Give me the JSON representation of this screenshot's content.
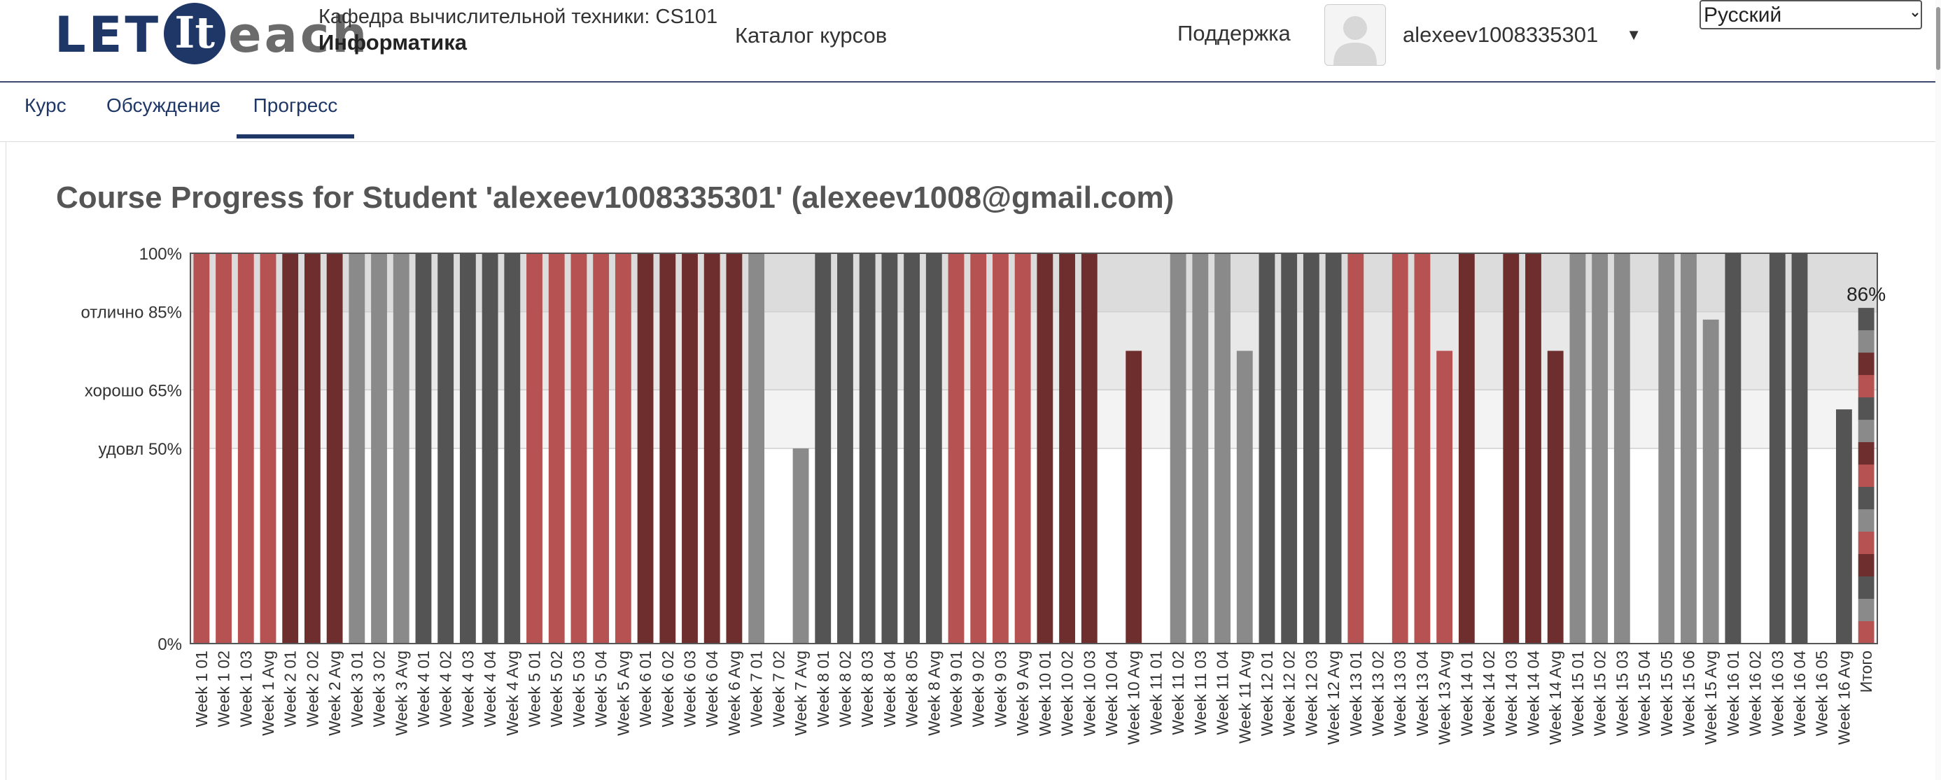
{
  "header": {
    "logo": {
      "part1": "LET",
      "part2": "It",
      "part3": "each"
    },
    "course_dept": "Кафедра вычислительной техники: CS101",
    "course_name": "Информатика",
    "catalog_link": "Каталог курсов",
    "support_link": "Поддержка",
    "username": "alexeev1008335301",
    "language": "Русский"
  },
  "tabs": [
    {
      "label": "Курс",
      "active": false
    },
    {
      "label": "Обсуждение",
      "active": false
    },
    {
      "label": "Прогресс",
      "active": true
    }
  ],
  "page_title": "Course Progress for Student 'alexeev1008335301' (alexeev1008@gmail.com)",
  "colors": {
    "red": "#b75252",
    "maroon": "#6e2e2e",
    "dark_gray": "#545454",
    "light_gray": "#8a8a8a",
    "nav_blue": "#1e3767"
  },
  "chart_data": {
    "type": "bar",
    "ylim": [
      0,
      100
    ],
    "y_ticks": [
      {
        "value": 100,
        "label": "100%"
      },
      {
        "value": 85,
        "label": "отлично 85%"
      },
      {
        "value": 65,
        "label": "хорошо 65%"
      },
      {
        "value": 50,
        "label": "удовл 50%"
      },
      {
        "value": 0,
        "label": "0%"
      }
    ],
    "bands": [
      {
        "from": 85,
        "to": 100,
        "color": "#dcdcdc"
      },
      {
        "from": 65,
        "to": 85,
        "color": "#e8e8e8"
      },
      {
        "from": 50,
        "to": 65,
        "color": "#f3f3f3"
      }
    ],
    "total_label": "86%",
    "categories": [
      "Week 1 01",
      "Week 1 02",
      "Week 1 03",
      "Week 1 Avg",
      "Week 2 01",
      "Week 2 02",
      "Week 2 Avg",
      "Week 3 01",
      "Week 3 02",
      "Week 3 Avg",
      "Week 4 01",
      "Week 4 02",
      "Week 4 03",
      "Week 4 04",
      "Week 4 Avg",
      "Week 5 01",
      "Week 5 02",
      "Week 5 03",
      "Week 5 04",
      "Week 5 Avg",
      "Week 6 01",
      "Week 6 02",
      "Week 6 03",
      "Week 6 04",
      "Week 6 Avg",
      "Week 7 01",
      "Week 7 02",
      "Week 7 Avg",
      "Week 8 01",
      "Week 8 02",
      "Week 8 03",
      "Week 8 04",
      "Week 8 05",
      "Week 8 Avg",
      "Week 9 01",
      "Week 9 02",
      "Week 9 03",
      "Week 9 Avg",
      "Week 10 01",
      "Week 10 02",
      "Week 10 03",
      "Week 10 04",
      "Week 10 Avg",
      "Week 11 01",
      "Week 11 02",
      "Week 11 03",
      "Week 11 04",
      "Week 11 Avg",
      "Week 12 01",
      "Week 12 02",
      "Week 12 03",
      "Week 12 Avg",
      "Week 13 01",
      "Week 13 02",
      "Week 13 03",
      "Week 13 04",
      "Week 13 Avg",
      "Week 14 01",
      "Week 14 02",
      "Week 14 03",
      "Week 14 04",
      "Week 14 Avg",
      "Week 15 01",
      "Week 15 02",
      "Week 15 03",
      "Week 15 04",
      "Week 15 05",
      "Week 15 06",
      "Week 15 Avg",
      "Week 16 01",
      "Week 16 02",
      "Week 16 03",
      "Week 16 04",
      "Week 16 05",
      "Week 16 Avg",
      "Итого"
    ],
    "values": [
      100,
      100,
      100,
      100,
      100,
      100,
      100,
      100,
      100,
      100,
      100,
      100,
      100,
      100,
      100,
      100,
      100,
      100,
      100,
      100,
      100,
      100,
      100,
      100,
      100,
      100,
      0,
      50,
      100,
      100,
      100,
      100,
      100,
      100,
      100,
      100,
      100,
      100,
      100,
      100,
      100,
      0,
      75,
      0,
      100,
      100,
      100,
      75,
      100,
      100,
      100,
      100,
      100,
      0,
      100,
      100,
      75,
      100,
      0,
      100,
      100,
      75,
      100,
      100,
      100,
      0,
      100,
      100,
      83,
      100,
      0,
      100,
      100,
      0,
      60,
      86
    ],
    "bar_colors": [
      "red",
      "red",
      "red",
      "red",
      "maroon",
      "maroon",
      "maroon",
      "light_gray",
      "light_gray",
      "light_gray",
      "dark_gray",
      "dark_gray",
      "dark_gray",
      "dark_gray",
      "dark_gray",
      "red",
      "red",
      "red",
      "red",
      "red",
      "maroon",
      "maroon",
      "maroon",
      "maroon",
      "maroon",
      "light_gray",
      "light_gray",
      "light_gray",
      "dark_gray",
      "dark_gray",
      "dark_gray",
      "dark_gray",
      "dark_gray",
      "dark_gray",
      "red",
      "red",
      "red",
      "red",
      "maroon",
      "maroon",
      "maroon",
      "maroon",
      "maroon",
      "light_gray",
      "light_gray",
      "light_gray",
      "light_gray",
      "light_gray",
      "dark_gray",
      "dark_gray",
      "dark_gray",
      "dark_gray",
      "red",
      "red",
      "red",
      "red",
      "red",
      "maroon",
      "maroon",
      "maroon",
      "maroon",
      "maroon",
      "light_gray",
      "light_gray",
      "light_gray",
      "light_gray",
      "light_gray",
      "light_gray",
      "light_gray",
      "dark_gray",
      "dark_gray",
      "dark_gray",
      "dark_gray",
      "dark_gray",
      "dark_gray",
      "stacked"
    ]
  }
}
